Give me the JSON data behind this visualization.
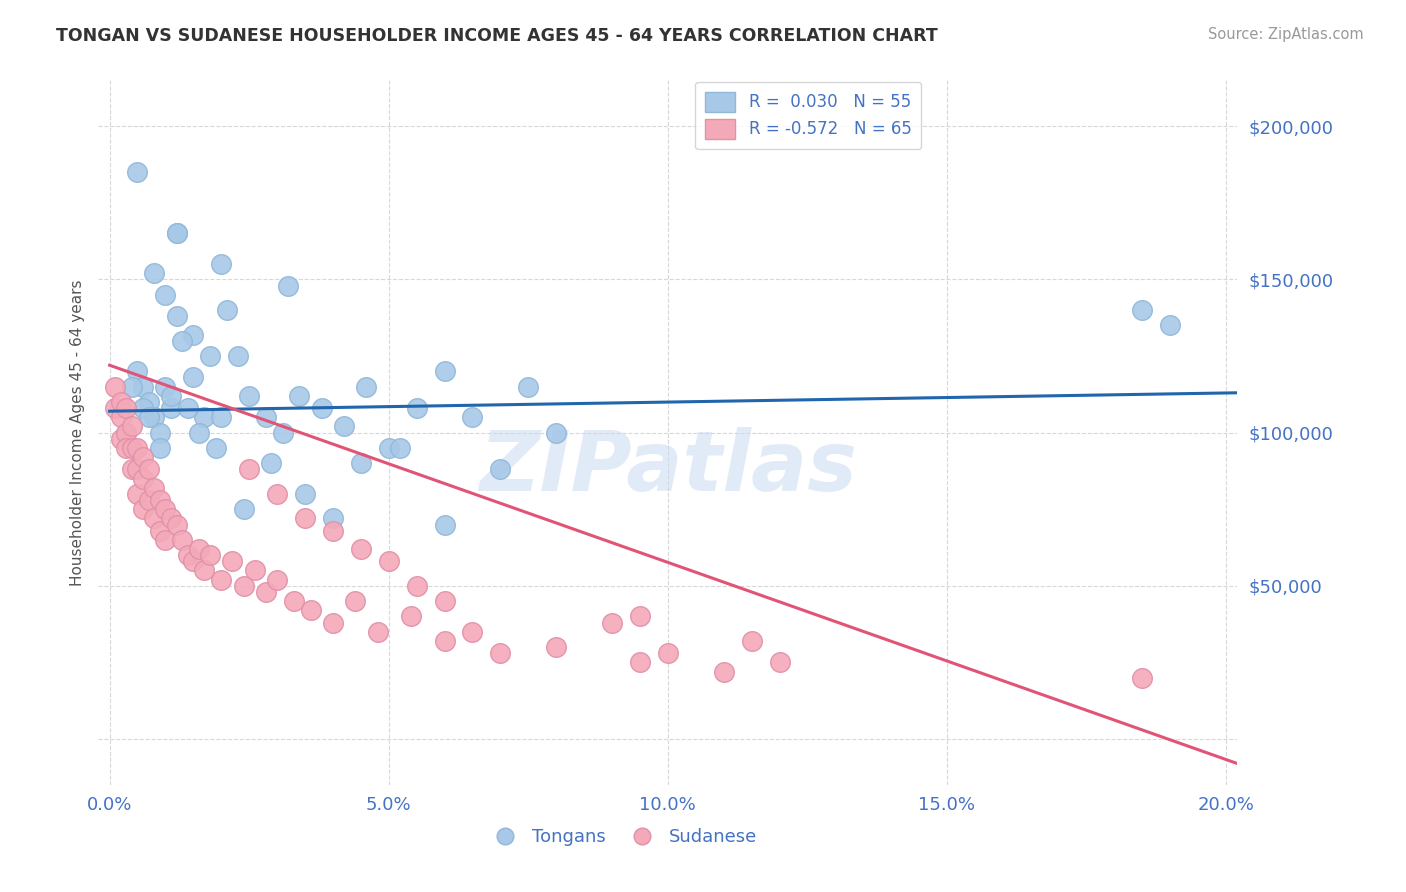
{
  "title": "TONGAN VS SUDANESE HOUSEHOLDER INCOME AGES 45 - 64 YEARS CORRELATION CHART",
  "source_text": "Source: ZipAtlas.com",
  "ylabel": "Householder Income Ages 45 - 64 years",
  "xlim": [
    -0.002,
    0.202
  ],
  "ylim": [
    -15000,
    215000
  ],
  "yticks": [
    0,
    50000,
    100000,
    150000,
    200000
  ],
  "ytick_labels": [
    "",
    "$50,000",
    "$100,000",
    "$150,000",
    "$200,000"
  ],
  "xticks": [
    0.0,
    0.05,
    0.1,
    0.15,
    0.2
  ],
  "xtick_labels": [
    "0.0%",
    "5.0%",
    "10.0%",
    "15.0%",
    "20.0%"
  ],
  "blue_R": 0.03,
  "blue_N": 55,
  "pink_R": -0.572,
  "pink_N": 65,
  "blue_scatter_color": "#a8c8e8",
  "pink_scatter_color": "#f4a9b8",
  "blue_line_color": "#2166ac",
  "pink_line_color": "#e05575",
  "background_color": "#ffffff",
  "grid_color": "#c8c8c8",
  "axis_color": "#4472C4",
  "watermark_text": "ZIPatlas",
  "blue_trend_x0": 0.0,
  "blue_trend_y0": 107000,
  "blue_trend_x1": 0.202,
  "blue_trend_y1": 113000,
  "pink_trend_x0": 0.0,
  "pink_trend_y0": 122000,
  "pink_trend_x1": 0.202,
  "pink_trend_y1": -8000,
  "tongans_x": [
    0.005,
    0.012,
    0.012,
    0.02,
    0.032,
    0.008,
    0.01,
    0.012,
    0.015,
    0.018,
    0.005,
    0.006,
    0.007,
    0.008,
    0.009,
    0.01,
    0.011,
    0.013,
    0.015,
    0.017,
    0.019,
    0.021,
    0.023,
    0.025,
    0.028,
    0.031,
    0.034,
    0.038,
    0.042,
    0.046,
    0.05,
    0.055,
    0.06,
    0.065,
    0.07,
    0.075,
    0.08,
    0.003,
    0.004,
    0.006,
    0.007,
    0.009,
    0.011,
    0.014,
    0.016,
    0.02,
    0.024,
    0.029,
    0.035,
    0.04,
    0.045,
    0.052,
    0.06,
    0.185,
    0.19
  ],
  "tongans_y": [
    185000,
    165000,
    165000,
    155000,
    148000,
    152000,
    145000,
    138000,
    132000,
    125000,
    120000,
    115000,
    110000,
    105000,
    100000,
    115000,
    108000,
    130000,
    118000,
    105000,
    95000,
    140000,
    125000,
    112000,
    105000,
    100000,
    112000,
    108000,
    102000,
    115000,
    95000,
    108000,
    120000,
    105000,
    88000,
    115000,
    100000,
    100000,
    115000,
    108000,
    105000,
    95000,
    112000,
    108000,
    100000,
    105000,
    75000,
    90000,
    80000,
    72000,
    90000,
    95000,
    70000,
    140000,
    135000
  ],
  "sudanese_x": [
    0.001,
    0.001,
    0.002,
    0.002,
    0.002,
    0.003,
    0.003,
    0.003,
    0.004,
    0.004,
    0.004,
    0.005,
    0.005,
    0.005,
    0.006,
    0.006,
    0.006,
    0.007,
    0.007,
    0.008,
    0.008,
    0.009,
    0.009,
    0.01,
    0.01,
    0.011,
    0.012,
    0.013,
    0.014,
    0.015,
    0.016,
    0.017,
    0.018,
    0.02,
    0.022,
    0.024,
    0.026,
    0.028,
    0.03,
    0.033,
    0.036,
    0.04,
    0.044,
    0.048,
    0.054,
    0.06,
    0.065,
    0.07,
    0.08,
    0.09,
    0.095,
    0.1,
    0.11,
    0.115,
    0.12,
    0.095,
    0.025,
    0.03,
    0.035,
    0.04,
    0.045,
    0.05,
    0.055,
    0.06,
    0.185
  ],
  "sudanese_y": [
    115000,
    108000,
    105000,
    98000,
    110000,
    100000,
    95000,
    108000,
    102000,
    95000,
    88000,
    95000,
    88000,
    80000,
    92000,
    85000,
    75000,
    88000,
    78000,
    82000,
    72000,
    78000,
    68000,
    75000,
    65000,
    72000,
    70000,
    65000,
    60000,
    58000,
    62000,
    55000,
    60000,
    52000,
    58000,
    50000,
    55000,
    48000,
    52000,
    45000,
    42000,
    38000,
    45000,
    35000,
    40000,
    32000,
    35000,
    28000,
    30000,
    38000,
    25000,
    28000,
    22000,
    32000,
    25000,
    40000,
    88000,
    80000,
    72000,
    68000,
    62000,
    58000,
    50000,
    45000,
    20000
  ]
}
